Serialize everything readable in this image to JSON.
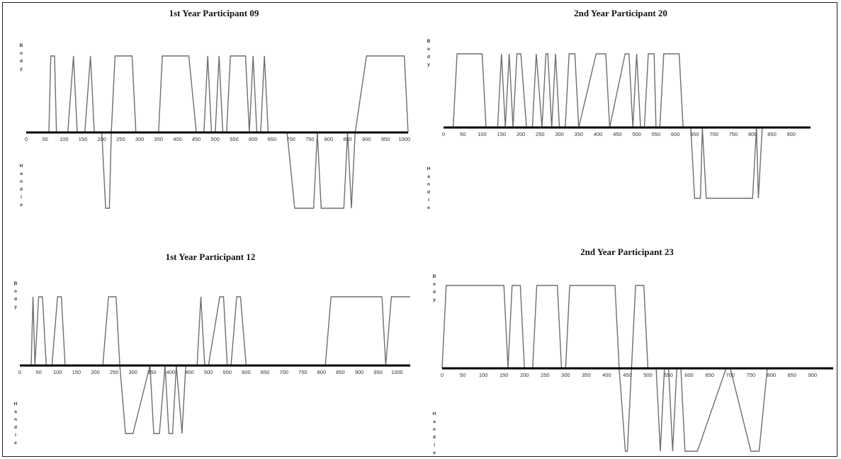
{
  "chart_data": [
    {
      "type": "line",
      "title": "1st Year Participant 09",
      "upper_label": "Body",
      "lower_label": "Handle",
      "x_ticks": [
        0,
        50,
        100,
        150,
        200,
        250,
        300,
        350,
        400,
        450,
        500,
        550,
        600,
        650,
        700,
        750,
        800,
        850,
        900,
        950,
        1000
      ],
      "xlim": [
        0,
        1010
      ],
      "ylim": [
        -1,
        1
      ],
      "series": [
        {
          "x": [
            0,
            60,
            65,
            75,
            80,
            110,
            125,
            135,
            155,
            170,
            180,
            190,
            200,
            210,
            220,
            225,
            235,
            245,
            280,
            290,
            300,
            350,
            360,
            400,
            430,
            450,
            470,
            480,
            490,
            500,
            510,
            520,
            530,
            540,
            560,
            580,
            590,
            600,
            610,
            620,
            630,
            640,
            660,
            690,
            710,
            760,
            770,
            780,
            790,
            840,
            850,
            860,
            870,
            900,
            1000,
            1010
          ],
          "y": [
            0,
            0,
            1,
            1,
            0,
            0,
            1,
            0,
            0,
            1,
            0,
            0,
            0,
            -1,
            -1,
            0,
            1,
            1,
            1,
            0,
            0,
            0,
            1,
            1,
            1,
            0,
            0,
            1,
            0,
            0,
            1,
            0,
            0,
            1,
            1,
            1,
            0,
            1,
            0,
            0,
            1,
            0,
            0,
            0,
            -1,
            -1,
            0,
            -1,
            -1,
            -1,
            0,
            -1,
            0,
            1,
            1,
            0
          ]
        }
      ]
    },
    {
      "type": "line",
      "title": "2nd Year Participant 20",
      "upper_label": "Body",
      "lower_label": "Handle",
      "x_ticks": [
        0,
        50,
        100,
        150,
        200,
        250,
        300,
        350,
        400,
        450,
        500,
        550,
        600,
        650,
        700,
        750,
        800,
        850,
        900
      ],
      "xlim": [
        0,
        950
      ],
      "ylim": [
        -1,
        1
      ],
      "series": [
        {
          "x": [
            0,
            25,
            35,
            100,
            110,
            140,
            150,
            160,
            170,
            180,
            190,
            200,
            215,
            230,
            240,
            255,
            265,
            270,
            280,
            290,
            300,
            315,
            325,
            340,
            350,
            395,
            420,
            430,
            470,
            480,
            490,
            500,
            510,
            520,
            530,
            545,
            550,
            560,
            570,
            610,
            620,
            640,
            650,
            665,
            670,
            680,
            800,
            810,
            815,
            825
          ],
          "y": [
            0,
            0,
            1,
            1,
            0,
            0,
            1,
            0,
            1,
            0,
            1,
            1,
            0,
            0,
            1,
            0,
            1,
            1,
            0,
            1,
            0,
            0,
            1,
            1,
            0,
            1,
            1,
            0,
            1,
            1,
            0,
            1,
            0,
            0,
            1,
            1,
            0,
            0,
            1,
            1,
            0,
            0,
            -1,
            -1,
            0,
            -1,
            -1,
            0,
            -1,
            0
          ]
        }
      ]
    },
    {
      "type": "line",
      "title": "1st Year Participant 12",
      "upper_label": "Body",
      "lower_label": "Handle",
      "x_ticks": [
        0,
        50,
        100,
        150,
        200,
        250,
        300,
        350,
        400,
        450,
        500,
        550,
        600,
        650,
        700,
        750,
        800,
        850,
        900,
        950,
        1000
      ],
      "xlim": [
        0,
        1035
      ],
      "ylim": [
        -1,
        1
      ],
      "series": [
        {
          "x": [
            0,
            30,
            35,
            40,
            50,
            60,
            70,
            85,
            100,
            110,
            120,
            130,
            220,
            235,
            255,
            265,
            280,
            300,
            345,
            355,
            370,
            385,
            395,
            405,
            415,
            430,
            440,
            450,
            470,
            480,
            490,
            500,
            530,
            540,
            550,
            560,
            575,
            585,
            600,
            610,
            810,
            825,
            960,
            970,
            985,
            1035
          ],
          "y": [
            0,
            0,
            1,
            0,
            1,
            1,
            0,
            0,
            1,
            1,
            0,
            0,
            0,
            1,
            1,
            0,
            -1,
            -1,
            0,
            -1,
            -1,
            0,
            -1,
            -1,
            0,
            -1,
            0,
            0,
            0,
            1,
            0,
            0,
            1,
            1,
            0,
            0,
            1,
            1,
            0,
            0,
            0,
            1,
            1,
            0,
            1,
            1
          ]
        }
      ]
    },
    {
      "type": "line",
      "title": "2nd Year Participant 23",
      "upper_label": "Body",
      "lower_label": "Handle",
      "x_ticks": [
        0,
        50,
        100,
        150,
        200,
        250,
        300,
        350,
        400,
        450,
        500,
        550,
        600,
        650,
        700,
        750,
        800,
        850,
        900
      ],
      "xlim": [
        0,
        950
      ],
      "ylim": [
        -1,
        1
      ],
      "series": [
        {
          "x": [
            0,
            10,
            150,
            160,
            170,
            190,
            200,
            220,
            230,
            280,
            290,
            300,
            310,
            420,
            430,
            445,
            450,
            460,
            470,
            490,
            500,
            520,
            530,
            540,
            550,
            560,
            570,
            580,
            590,
            620,
            690,
            700,
            750,
            770,
            790
          ],
          "y": [
            0,
            1,
            1,
            0,
            1,
            1,
            0,
            0,
            1,
            1,
            0,
            0,
            1,
            1,
            0,
            -1,
            -1,
            0,
            1,
            1,
            0,
            0,
            -1,
            0,
            0,
            -1,
            0,
            0,
            -1,
            -1,
            0,
            0,
            -1,
            -1,
            0
          ]
        }
      ]
    }
  ]
}
